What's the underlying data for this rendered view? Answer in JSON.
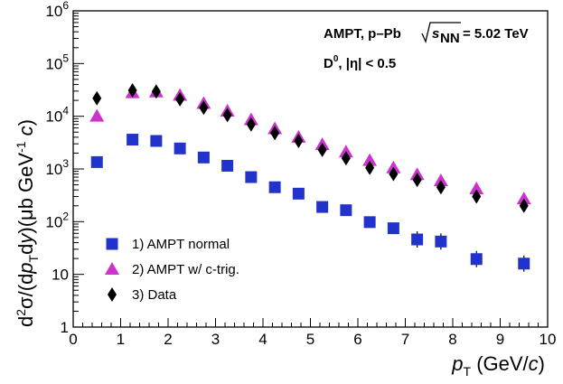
{
  "chart_data": {
    "type": "scatter",
    "xlabel": "p_T (GeV/c)",
    "ylabel": "d²σ/(dp_T dy)(μb GeV⁻¹ c)",
    "xlim": [
      0,
      10
    ],
    "ylim": [
      1,
      1000000
    ],
    "yscale": "log",
    "x_tick_labels": [
      "0",
      "1",
      "2",
      "3",
      "4",
      "5",
      "6",
      "7",
      "8",
      "9",
      "10"
    ],
    "y_tick_labels": [
      "1",
      "10",
      "10²",
      "10³",
      "10⁴",
      "10⁵",
      "10⁶"
    ],
    "annotations": {
      "line1_prefix": "AMPT, p–Pb",
      "line1_energy": "= 5.02 TeV",
      "line2_particle": "D",
      "line2_sup": "0",
      "line2_rest": ", |η| < 0.5"
    },
    "legend_position": "bottom-left",
    "series": [
      {
        "name": "1) AMPT normal",
        "marker": "square",
        "color": "#2233cc",
        "x": [
          0.5,
          1.25,
          1.75,
          2.25,
          2.75,
          3.25,
          3.75,
          4.25,
          4.75,
          5.25,
          5.75,
          6.25,
          6.75,
          7.25,
          7.75,
          8.5,
          9.5
        ],
        "values": [
          1350,
          3600,
          3400,
          2450,
          1650,
          1150,
          700,
          450,
          340,
          190,
          165,
          98,
          75,
          46,
          42,
          19.5,
          16
        ]
      },
      {
        "name": "2) AMPT w/ c-trig.",
        "marker": "triangle",
        "color": "#cc33cc",
        "x": [
          0.5,
          1.25,
          1.75,
          2.25,
          2.75,
          3.25,
          3.75,
          4.25,
          4.75,
          5.25,
          5.75,
          6.25,
          6.75,
          7.25,
          7.75,
          8.5,
          9.5
        ],
        "values": [
          10000,
          28000,
          29000,
          25000,
          17500,
          12500,
          8600,
          5800,
          4000,
          2900,
          2100,
          1450,
          1050,
          780,
          600,
          420,
          270
        ]
      },
      {
        "name": "3) Data",
        "marker": "diamond",
        "color": "#000000",
        "x": [
          0.5,
          1.25,
          1.75,
          2.25,
          2.75,
          3.25,
          3.75,
          4.25,
          4.75,
          5.25,
          5.75,
          6.25,
          6.75,
          7.25,
          7.75,
          8.5,
          9.5
        ],
        "values": [
          22000,
          31000,
          29500,
          21000,
          14500,
          10500,
          7000,
          4800,
          3400,
          2300,
          1600,
          1050,
          800,
          620,
          450,
          300,
          200
        ]
      }
    ]
  }
}
